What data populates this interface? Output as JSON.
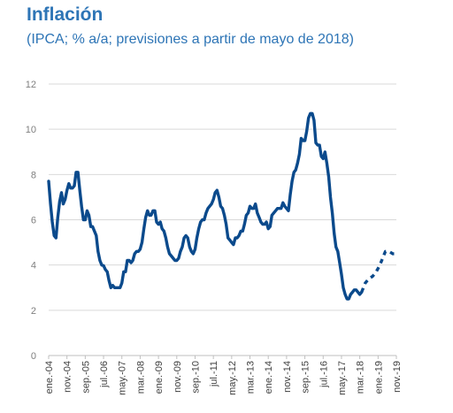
{
  "chart_data": {
    "type": "line",
    "title": "Inflación",
    "subtitle": "(IPCA; % a/a; previsiones a partir de mayo de 2018)",
    "xlabel": "",
    "ylabel": "",
    "ylim": [
      0,
      12
    ],
    "yticks": [
      "0",
      "2",
      "4",
      "6",
      "8",
      "10",
      "12"
    ],
    "grid": true,
    "legend": "none",
    "colors": {
      "line": "#0b4a8c",
      "grid": "#d9d9d9",
      "axis_text": "#7f7f7f",
      "title": "#2e75b6"
    },
    "x_tick_labels": [
      {
        "label": "ene.-04",
        "x": "2004-01"
      },
      {
        "label": "nov.-04",
        "x": "2004-11"
      },
      {
        "label": "sep.-05",
        "x": "2005-09"
      },
      {
        "label": "jul.-06",
        "x": "2006-07"
      },
      {
        "label": "may.-07",
        "x": "2007-05"
      },
      {
        "label": "mar.-08",
        "x": "2008-03"
      },
      {
        "label": "ene.-09",
        "x": "2009-01"
      },
      {
        "label": "nov.-09",
        "x": "2009-11"
      },
      {
        "label": "sep.-10",
        "x": "2010-09"
      },
      {
        "label": "jul.-11",
        "x": "2011-07"
      },
      {
        "label": "may.-12",
        "x": "2012-05"
      },
      {
        "label": "mar.-13",
        "x": "2013-03"
      },
      {
        "label": "ene.-14",
        "x": "2014-01"
      },
      {
        "label": "nov.-14",
        "x": "2014-11"
      },
      {
        "label": "sep.-15",
        "x": "2015-09"
      },
      {
        "label": "jul.-16",
        "x": "2016-07"
      },
      {
        "label": "may.-17",
        "x": "2017-05"
      },
      {
        "label": "mar.-18",
        "x": "2018-03"
      },
      {
        "label": "ene.-19",
        "x": "2019-01"
      },
      {
        "label": "nov.-19",
        "x": "2019-11"
      }
    ],
    "series": [
      {
        "style": "solid",
        "points": [
          [
            "2004-01",
            7.7
          ],
          [
            "2004-02",
            6.7
          ],
          [
            "2004-03",
            5.9
          ],
          [
            "2004-04",
            5.3
          ],
          [
            "2004-05",
            5.2
          ],
          [
            "2004-06",
            6.1
          ],
          [
            "2004-07",
            6.8
          ],
          [
            "2004-08",
            7.2
          ],
          [
            "2004-09",
            6.7
          ],
          [
            "2004-10",
            6.9
          ],
          [
            "2004-11",
            7.3
          ],
          [
            "2004-12",
            7.6
          ],
          [
            "2005-01",
            7.4
          ],
          [
            "2005-02",
            7.4
          ],
          [
            "2005-03",
            7.5
          ],
          [
            "2005-04",
            8.1
          ],
          [
            "2005-05",
            8.1
          ],
          [
            "2005-06",
            7.3
          ],
          [
            "2005-07",
            6.6
          ],
          [
            "2005-08",
            6.0
          ],
          [
            "2005-09",
            6.0
          ],
          [
            "2005-10",
            6.4
          ],
          [
            "2005-11",
            6.2
          ],
          [
            "2005-12",
            5.7
          ],
          [
            "2006-01",
            5.7
          ],
          [
            "2006-02",
            5.5
          ],
          [
            "2006-03",
            5.3
          ],
          [
            "2006-04",
            4.6
          ],
          [
            "2006-05",
            4.2
          ],
          [
            "2006-06",
            4.0
          ],
          [
            "2006-07",
            3.97
          ],
          [
            "2006-08",
            3.8
          ],
          [
            "2006-09",
            3.7
          ],
          [
            "2006-10",
            3.3
          ],
          [
            "2006-11",
            3.0
          ],
          [
            "2006-12",
            3.1
          ],
          [
            "2007-01",
            3.0
          ],
          [
            "2007-02",
            3.0
          ],
          [
            "2007-03",
            3.0
          ],
          [
            "2007-04",
            3.0
          ],
          [
            "2007-05",
            3.2
          ],
          [
            "2007-06",
            3.7
          ],
          [
            "2007-07",
            3.7
          ],
          [
            "2007-08",
            4.2
          ],
          [
            "2007-09",
            4.2
          ],
          [
            "2007-10",
            4.1
          ],
          [
            "2007-11",
            4.2
          ],
          [
            "2007-12",
            4.5
          ],
          [
            "2008-01",
            4.6
          ],
          [
            "2008-02",
            4.6
          ],
          [
            "2008-03",
            4.7
          ],
          [
            "2008-04",
            5.0
          ],
          [
            "2008-05",
            5.6
          ],
          [
            "2008-06",
            6.1
          ],
          [
            "2008-07",
            6.4
          ],
          [
            "2008-08",
            6.2
          ],
          [
            "2008-09",
            6.2
          ],
          [
            "2008-10",
            6.4
          ],
          [
            "2008-11",
            6.4
          ],
          [
            "2008-12",
            5.9
          ],
          [
            "2009-01",
            5.8
          ],
          [
            "2009-02",
            5.9
          ],
          [
            "2009-03",
            5.6
          ],
          [
            "2009-04",
            5.5
          ],
          [
            "2009-05",
            5.2
          ],
          [
            "2009-06",
            4.8
          ],
          [
            "2009-07",
            4.5
          ],
          [
            "2009-08",
            4.4
          ],
          [
            "2009-09",
            4.3
          ],
          [
            "2009-10",
            4.2
          ],
          [
            "2009-11",
            4.2
          ],
          [
            "2009-12",
            4.3
          ],
          [
            "2010-01",
            4.6
          ],
          [
            "2010-02",
            4.8
          ],
          [
            "2010-03",
            5.2
          ],
          [
            "2010-04",
            5.3
          ],
          [
            "2010-05",
            5.2
          ],
          [
            "2010-06",
            4.8
          ],
          [
            "2010-07",
            4.6
          ],
          [
            "2010-08",
            4.5
          ],
          [
            "2010-09",
            4.7
          ],
          [
            "2010-10",
            5.2
          ],
          [
            "2010-11",
            5.6
          ],
          [
            "2010-12",
            5.9
          ],
          [
            "2011-01",
            6.0
          ],
          [
            "2011-02",
            6.0
          ],
          [
            "2011-03",
            6.3
          ],
          [
            "2011-04",
            6.5
          ],
          [
            "2011-05",
            6.6
          ],
          [
            "2011-06",
            6.7
          ],
          [
            "2011-07",
            6.9
          ],
          [
            "2011-08",
            7.2
          ],
          [
            "2011-09",
            7.3
          ],
          [
            "2011-10",
            7.0
          ],
          [
            "2011-11",
            6.6
          ],
          [
            "2011-12",
            6.5
          ],
          [
            "2012-01",
            6.2
          ],
          [
            "2012-02",
            5.8
          ],
          [
            "2012-03",
            5.2
          ],
          [
            "2012-04",
            5.1
          ],
          [
            "2012-05",
            5.0
          ],
          [
            "2012-06",
            4.9
          ],
          [
            "2012-07",
            5.2
          ],
          [
            "2012-08",
            5.2
          ],
          [
            "2012-09",
            5.3
          ],
          [
            "2012-10",
            5.5
          ],
          [
            "2012-11",
            5.5
          ],
          [
            "2012-12",
            5.8
          ],
          [
            "2013-01",
            6.2
          ],
          [
            "2013-02",
            6.3
          ],
          [
            "2013-03",
            6.6
          ],
          [
            "2013-04",
            6.5
          ],
          [
            "2013-05",
            6.5
          ],
          [
            "2013-06",
            6.7
          ],
          [
            "2013-07",
            6.3
          ],
          [
            "2013-08",
            6.1
          ],
          [
            "2013-09",
            5.9
          ],
          [
            "2013-10",
            5.8
          ],
          [
            "2013-11",
            5.8
          ],
          [
            "2013-12",
            5.9
          ],
          [
            "2014-01",
            5.6
          ],
          [
            "2014-02",
            5.7
          ],
          [
            "2014-03",
            6.2
          ],
          [
            "2014-04",
            6.3
          ],
          [
            "2014-05",
            6.4
          ],
          [
            "2014-06",
            6.5
          ],
          [
            "2014-07",
            6.5
          ],
          [
            "2014-08",
            6.5
          ],
          [
            "2014-09",
            6.75
          ],
          [
            "2014-10",
            6.6
          ],
          [
            "2014-11",
            6.5
          ],
          [
            "2014-12",
            6.4
          ],
          [
            "2015-01",
            7.1
          ],
          [
            "2015-02",
            7.7
          ],
          [
            "2015-03",
            8.1
          ],
          [
            "2015-04",
            8.2
          ],
          [
            "2015-05",
            8.5
          ],
          [
            "2015-06",
            8.9
          ],
          [
            "2015-07",
            9.6
          ],
          [
            "2015-08",
            9.5
          ],
          [
            "2015-09",
            9.5
          ],
          [
            "2015-10",
            9.9
          ],
          [
            "2015-11",
            10.5
          ],
          [
            "2015-12",
            10.7
          ],
          [
            "2016-01",
            10.7
          ],
          [
            "2016-02",
            10.4
          ],
          [
            "2016-03",
            9.4
          ],
          [
            "2016-04",
            9.3
          ],
          [
            "2016-05",
            9.3
          ],
          [
            "2016-06",
            8.8
          ],
          [
            "2016-07",
            8.7
          ],
          [
            "2016-08",
            9.0
          ],
          [
            "2016-09",
            8.5
          ],
          [
            "2016-10",
            7.9
          ],
          [
            "2016-11",
            7.0
          ],
          [
            "2016-12",
            6.3
          ],
          [
            "2017-01",
            5.4
          ],
          [
            "2017-02",
            4.8
          ],
          [
            "2017-03",
            4.6
          ],
          [
            "2017-04",
            4.1
          ],
          [
            "2017-05",
            3.6
          ],
          [
            "2017-06",
            3.0
          ],
          [
            "2017-07",
            2.7
          ],
          [
            "2017-08",
            2.5
          ],
          [
            "2017-09",
            2.5
          ],
          [
            "2017-10",
            2.7
          ],
          [
            "2017-11",
            2.8
          ],
          [
            "2017-12",
            2.9
          ],
          [
            "2018-01",
            2.9
          ],
          [
            "2018-02",
            2.8
          ],
          [
            "2018-03",
            2.7
          ],
          [
            "2018-04",
            2.8
          ]
        ]
      },
      {
        "style": "dashed",
        "points": [
          [
            "2018-04",
            2.8
          ],
          [
            "2018-06",
            3.2
          ],
          [
            "2018-08",
            3.4
          ],
          [
            "2018-10",
            3.5
          ],
          [
            "2018-12",
            3.7
          ],
          [
            "2019-02",
            4.0
          ],
          [
            "2019-04",
            4.4
          ],
          [
            "2019-05",
            4.6
          ],
          [
            "2019-07",
            4.6
          ],
          [
            "2019-09",
            4.5
          ],
          [
            "2019-10",
            4.5
          ],
          [
            "2019-11",
            4.6
          ]
        ]
      }
    ]
  }
}
